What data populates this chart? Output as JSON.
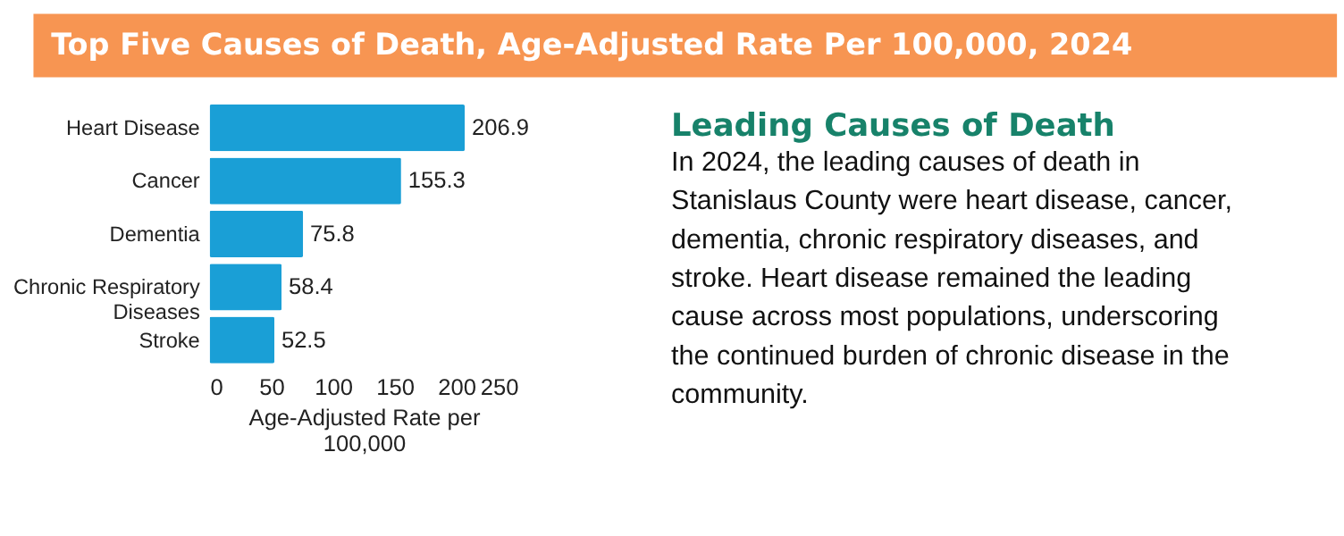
{
  "chart_data": {
    "type": "bar",
    "orientation": "horizontal",
    "title": "Top Five Causes of Death, Age-Adjusted Rate Per 100,000, 2024",
    "categories": [
      "Heart Disease",
      "Cancer",
      "Dementia",
      "Chronic Respiratory Diseases",
      "Stroke"
    ],
    "values": [
      206.9,
      155.3,
      75.8,
      58.4,
      52.5
    ],
    "color": "#1a9fd6",
    "xlim": [
      0,
      250
    ],
    "xticks": [
      0,
      50,
      100,
      150,
      200,
      250
    ],
    "xlabel": "Age-Adjusted Rate per 100,000",
    "data_labels": true,
    "grid": false,
    "annotations": [
      "Leading Causes of Death",
      "In 2024, the leading causes of death in Stanislaus County were heart disease, cancer, dementia, chronic respiratory diseases, and stroke. Heart disease remained the leading cause across most populations, underscoring the continued burden of chronic disease in the community."
    ]
  }
}
